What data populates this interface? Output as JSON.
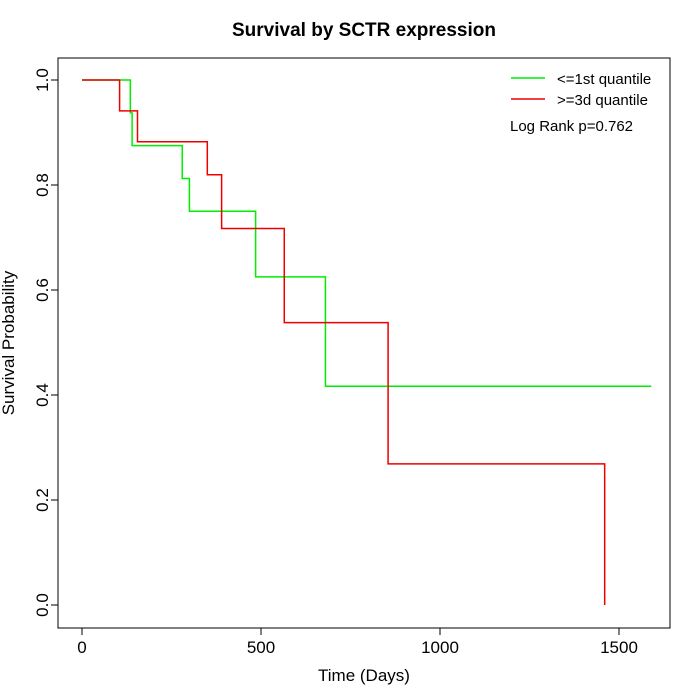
{
  "chart_data": {
    "type": "line",
    "title": "Survival by SCTR expression",
    "xlabel": "Time (Days)",
    "ylabel": "Survival Probability",
    "xlim": [
      0,
      1600
    ],
    "ylim": [
      0,
      1.0
    ],
    "x_ticks": [
      0,
      500,
      1000,
      1500
    ],
    "y_ticks": [
      0.0,
      0.2,
      0.4,
      0.6,
      0.8,
      1.0
    ],
    "x_tick_labels": [
      "0",
      "500",
      "1000",
      "1500"
    ],
    "y_tick_labels": [
      "0.0",
      "0.2",
      "0.4",
      "0.6",
      "0.8",
      "1.0"
    ],
    "grid": false,
    "legend_position": "top-right",
    "annotation": "Log Rank p=0.762",
    "series": [
      {
        "name": "<=1st quantile",
        "color": "#00ee00",
        "step": true,
        "x": [
          0,
          135,
          140,
          280,
          300,
          485,
          680,
          1590
        ],
        "y": [
          1.0,
          0.9375,
          0.875,
          0.8125,
          0.75,
          0.625,
          0.4167,
          0.4167
        ]
      },
      {
        "name": ">=3d quantile",
        "color": "#ee0000",
        "step": true,
        "x": [
          0,
          105,
          155,
          350,
          390,
          565,
          855,
          1460
        ],
        "y": [
          1.0,
          0.9412,
          0.8824,
          0.8196,
          0.7172,
          0.5379,
          0.2689,
          0.0
        ]
      }
    ]
  }
}
